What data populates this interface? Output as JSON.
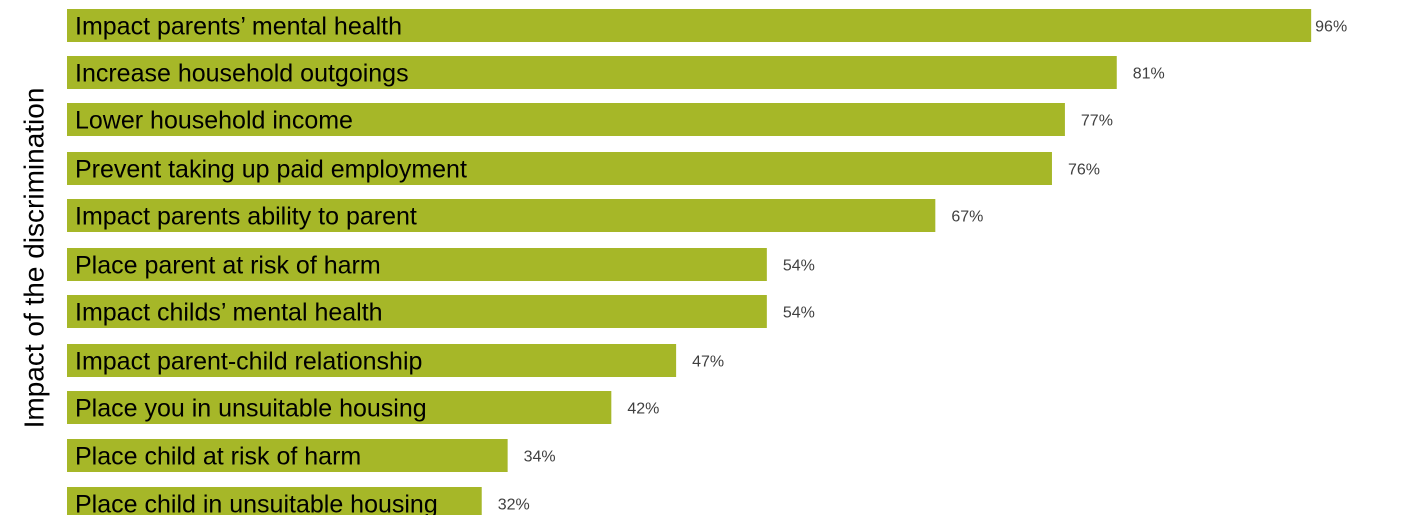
{
  "chart_data": {
    "type": "bar",
    "orientation": "horizontal",
    "ylabel": "Impact of the discrimination",
    "categories": [
      "Impact parents’ mental health",
      "Increase household outgoings",
      "Lower household income",
      "Prevent taking up paid employment",
      "Impact parents ability to parent",
      "Place parent at risk of harm",
      "Impact childs’ mental health",
      "Impact parent-child relationship",
      "Place you in unsuitable housing",
      "Place child at risk of harm",
      "Place child in unsuitable housing"
    ],
    "values": [
      96,
      81,
      77,
      76,
      67,
      54,
      54,
      47,
      42,
      34,
      32
    ],
    "value_labels": [
      "96%",
      "81%",
      "77%",
      "76%",
      "67%",
      "54%",
      "54%",
      "47%",
      "42%",
      "34%",
      "32%"
    ],
    "unit": "%",
    "xlim": [
      0,
      100
    ],
    "bar_color": "#a6b728",
    "grid": false,
    "legend": "none"
  }
}
